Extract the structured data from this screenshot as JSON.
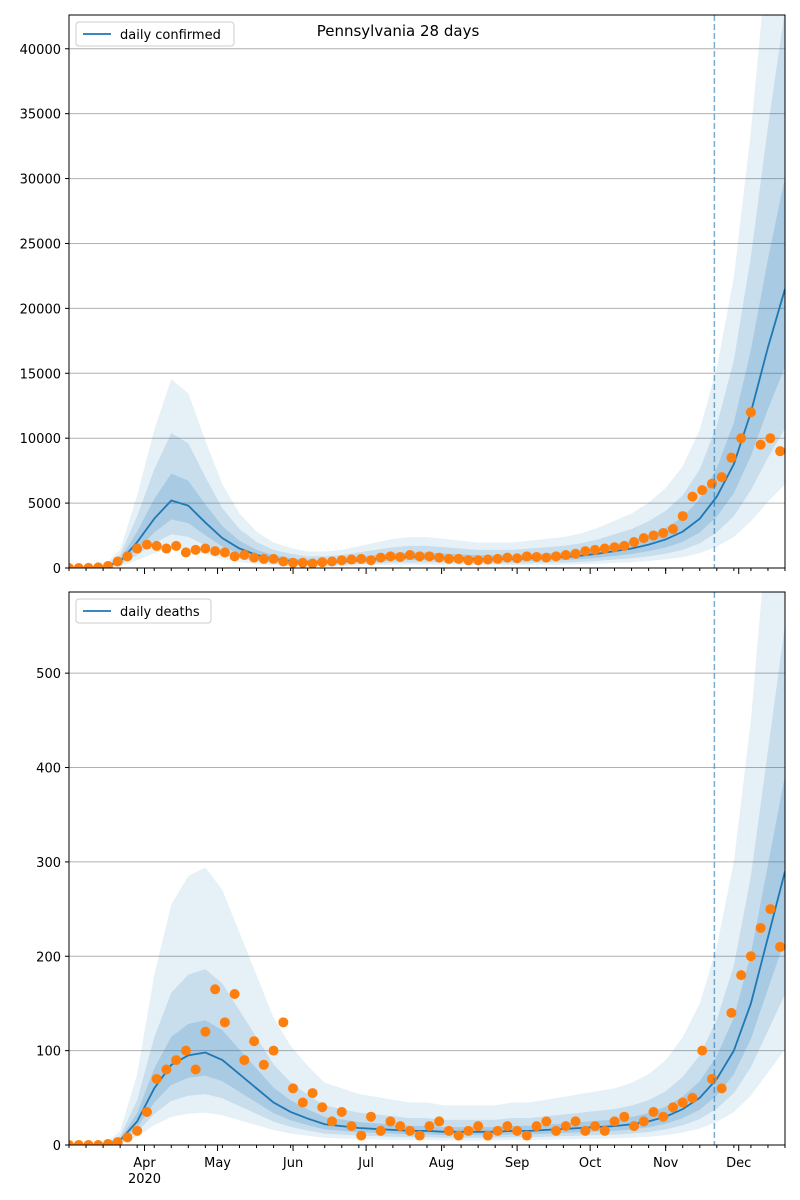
{
  "chart_data": [
    {
      "type": "line",
      "title": "Pennsylvania 28 days",
      "legend": [
        "daily confirmed"
      ],
      "legend_placement": "top-left",
      "x_unit": "days since 2020-03-01",
      "xlim": [
        0,
        294
      ],
      "ylim": [
        0,
        42600
      ],
      "yticks": [
        0,
        5000,
        10000,
        15000,
        20000,
        25000,
        30000,
        35000,
        40000
      ],
      "grid": "horizontal",
      "forecast_start_day": 265,
      "model_days_step": 7,
      "model": [
        0,
        0,
        50,
        500,
        2000,
        3800,
        5200,
        4800,
        3500,
        2300,
        1500,
        1000,
        700,
        550,
        450,
        450,
        500,
        600,
        700,
        800,
        850,
        850,
        800,
        750,
        700,
        700,
        700,
        750,
        800,
        850,
        950,
        1100,
        1300,
        1500,
        1800,
        2200,
        2800,
        3800,
        5500,
        8000,
        12000,
        17000,
        21500
      ],
      "band_ratios": [
        [
          0.3,
          2.8
        ],
        [
          0.5,
          2.0
        ],
        [
          0.72,
          1.4
        ]
      ],
      "observed_days_step": 4,
      "observed": [
        0,
        0,
        10,
        50,
        150,
        500,
        900,
        1500,
        1800,
        1700,
        1500,
        1700,
        1200,
        1400,
        1500,
        1300,
        1200,
        900,
        1000,
        800,
        700,
        700,
        500,
        400,
        400,
        350,
        450,
        500,
        600,
        650,
        700,
        600,
        800,
        900,
        850,
        1000,
        900,
        900,
        800,
        700,
        700,
        600,
        600,
        650,
        700,
        800,
        750,
        900,
        850,
        800,
        900,
        1000,
        1100,
        1300,
        1400,
        1500,
        1600,
        1700,
        2000,
        2300,
        2500,
        2700,
        3000,
        4000,
        5500,
        6000,
        6500,
        7000,
        8500,
        10000,
        12000,
        9500,
        10000,
        9000
      ]
    },
    {
      "type": "line",
      "legend": [
        "daily deaths"
      ],
      "legend_placement": "top-left",
      "x_unit": "days since 2020-03-01",
      "xlim": [
        0,
        294
      ],
      "ylim": [
        0,
        586
      ],
      "yticks": [
        0,
        100,
        200,
        300,
        400,
        500
      ],
      "grid": "horizontal",
      "forecast_start_day": 265,
      "xticks": [
        {
          "day": 31,
          "label": "Apr",
          "sub": "2020"
        },
        {
          "day": 61,
          "label": "May"
        },
        {
          "day": 92,
          "label": "Jun"
        },
        {
          "day": 122,
          "label": "Jul"
        },
        {
          "day": 153,
          "label": "Aug"
        },
        {
          "day": 184,
          "label": "Sep"
        },
        {
          "day": 214,
          "label": "Oct"
        },
        {
          "day": 245,
          "label": "Nov"
        },
        {
          "day": 275,
          "label": "Dec"
        }
      ],
      "model_days_step": 7,
      "model": [
        0,
        0,
        0,
        5,
        25,
        60,
        85,
        95,
        98,
        90,
        75,
        60,
        45,
        35,
        28,
        22,
        20,
        18,
        17,
        16,
        15,
        15,
        14,
        14,
        14,
        14,
        15,
        15,
        16,
        17,
        18,
        19,
        20,
        22,
        25,
        30,
        38,
        50,
        70,
        100,
        150,
        220,
        290
      ],
      "band_ratios": [
        [
          0.35,
          3.0
        ],
        [
          0.55,
          1.9
        ],
        [
          0.75,
          1.35
        ]
      ],
      "observed_days_step": 4,
      "observed": [
        0,
        0,
        0,
        0,
        1,
        3,
        8,
        15,
        35,
        70,
        80,
        90,
        100,
        80,
        120,
        165,
        130,
        160,
        90,
        110,
        85,
        100,
        130,
        60,
        45,
        55,
        40,
        25,
        35,
        20,
        10,
        30,
        15,
        25,
        20,
        15,
        10,
        20,
        25,
        15,
        10,
        15,
        20,
        10,
        15,
        20,
        15,
        10,
        20,
        25,
        15,
        20,
        25,
        15,
        20,
        15,
        25,
        30,
        20,
        25,
        35,
        30,
        40,
        45,
        50,
        100,
        70,
        60,
        140,
        180,
        200,
        230,
        250,
        210
      ]
    }
  ],
  "colors": {
    "line": "#1f77b4",
    "band": "#1f77b4",
    "dots": "#ff7f0e",
    "grid": "#b0b0b0"
  }
}
